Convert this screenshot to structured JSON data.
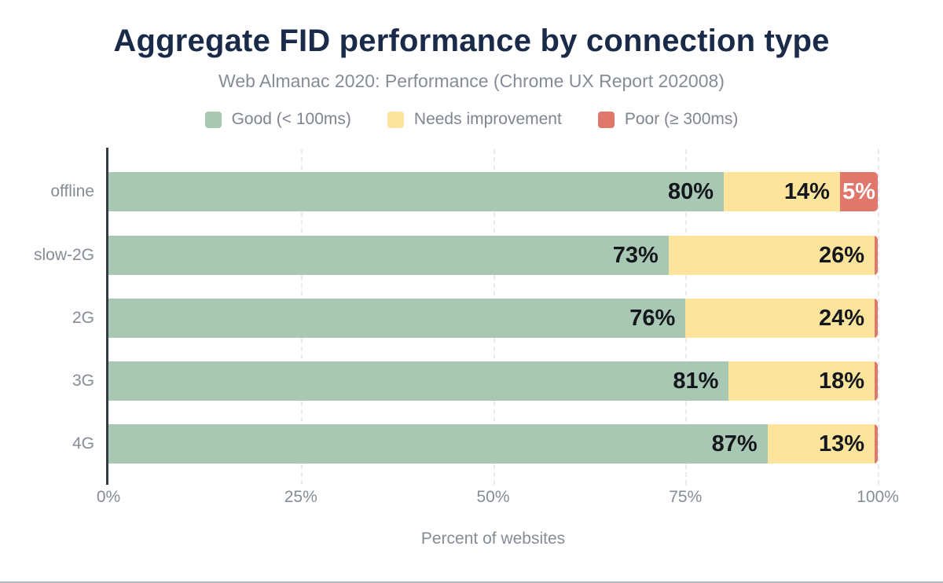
{
  "figure": {
    "title": "Aggregate FID performance by connection type",
    "subtitle": "Web Almanac 2020: Performance (Chrome UX Report 202008)"
  },
  "colors": {
    "good": "#a8c8b4",
    "needs_improvement": "#fce49d",
    "poor": "#df776b",
    "title_text": "#1a2b49",
    "muted_text": "#868c95",
    "bar_label": "#14181c",
    "poor_bar_label": "#ffffff",
    "axis_line": "#333b44",
    "gridline": "#e8eaed"
  },
  "legend": {
    "items": [
      {
        "id": "good",
        "label": "Good (< 100ms)",
        "color": "#a8c8b4"
      },
      {
        "id": "needs-improvement",
        "label": "Needs improvement",
        "color": "#fce49d"
      },
      {
        "id": "poor",
        "label": "Poor (≥ 300ms)",
        "color": "#df776b"
      }
    ]
  },
  "x_axis": {
    "ticks": [
      "0%",
      "25%",
      "50%",
      "75%",
      "100%"
    ],
    "tick_positions": [
      0,
      25,
      50,
      75,
      100
    ],
    "title": "Percent of websites"
  },
  "chart_data": {
    "type": "bar",
    "orientation": "horizontal",
    "stacked": true,
    "title": "Aggregate FID performance by connection type",
    "subtitle": "Web Almanac 2020: Performance (Chrome UX Report 202008)",
    "xlabel": "Percent of websites",
    "ylabel": "",
    "xlim": [
      0,
      100
    ],
    "x_tick_labels": [
      "0%",
      "25%",
      "50%",
      "75%",
      "100%"
    ],
    "grid": "vertical-dashed",
    "legend_position": "top",
    "categories": [
      "offline",
      "slow-2G",
      "2G",
      "3G",
      "4G"
    ],
    "series": [
      {
        "name": "Good (< 100ms)",
        "color": "#a8c8b4",
        "values": [
          80,
          73,
          76,
          81,
          87
        ],
        "labels": [
          "80%",
          "73%",
          "76%",
          "81%",
          "87%"
        ]
      },
      {
        "name": "Needs improvement",
        "color": "#fce49d",
        "values": [
          14,
          26,
          24,
          18,
          13
        ],
        "labels": [
          "14%",
          "26%",
          "24%",
          "18%",
          "13%"
        ]
      },
      {
        "name": "Poor (≥ 300ms)",
        "color": "#df776b",
        "values": [
          5,
          1,
          1,
          1,
          1
        ],
        "labels": [
          "5%",
          "",
          "",
          "",
          ""
        ]
      }
    ]
  }
}
